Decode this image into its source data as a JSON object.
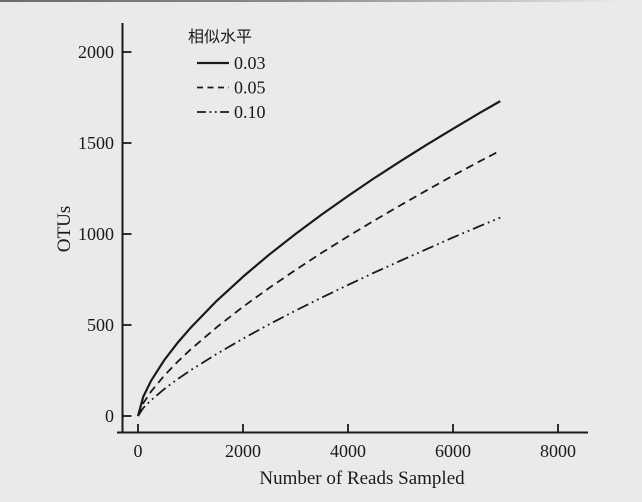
{
  "colors": {
    "background": "#eaeaea",
    "ink": "#1a1a1a"
  },
  "chart_data": {
    "type": "line",
    "title": "",
    "xlabel": "Number of Reads Sampled",
    "ylabel": "OTUs",
    "xlim": [
      -400,
      8600
    ],
    "ylim": [
      -90,
      2160
    ],
    "xticks": [
      0,
      2000,
      4000,
      6000,
      8000
    ],
    "yticks": [
      0,
      500,
      1000,
      1500,
      2000
    ],
    "grid": false,
    "legend": {
      "title": "相似水平",
      "position": "upper-left-inside",
      "entries": [
        {
          "label": "0.03",
          "line_style": "solid"
        },
        {
          "label": "0.05",
          "line_style": "dashed"
        },
        {
          "label": "0.10",
          "line_style": "dash-dot-dot"
        }
      ]
    },
    "x": [
      0,
      100,
      250,
      500,
      750,
      1000,
      1500,
      2000,
      2500,
      3000,
      3500,
      4000,
      4500,
      5000,
      5500,
      6000,
      6500,
      6900
    ],
    "series": [
      {
        "name": "0.03",
        "line_style": "solid",
        "values": [
          0,
          106,
          194,
          307,
          401,
          484,
          633,
          765,
          887,
          1000,
          1107,
          1209,
          1307,
          1400,
          1491,
          1578,
          1664,
          1730
        ]
      },
      {
        "name": "0.05",
        "line_style": "dashed",
        "values": [
          0,
          70,
          135,
          222,
          297,
          365,
          488,
          600,
          704,
          802,
          897,
          987,
          1074,
          1158,
          1240,
          1321,
          1398,
          1458
        ]
      },
      {
        "name": "0.10",
        "line_style": "dash-dot-dot",
        "values": [
          0,
          44,
          87,
          148,
          202,
          251,
          341,
          425,
          504,
          579,
          651,
          720,
          788,
          853,
          917,
          981,
          1042,
          1090
        ]
      }
    ]
  }
}
